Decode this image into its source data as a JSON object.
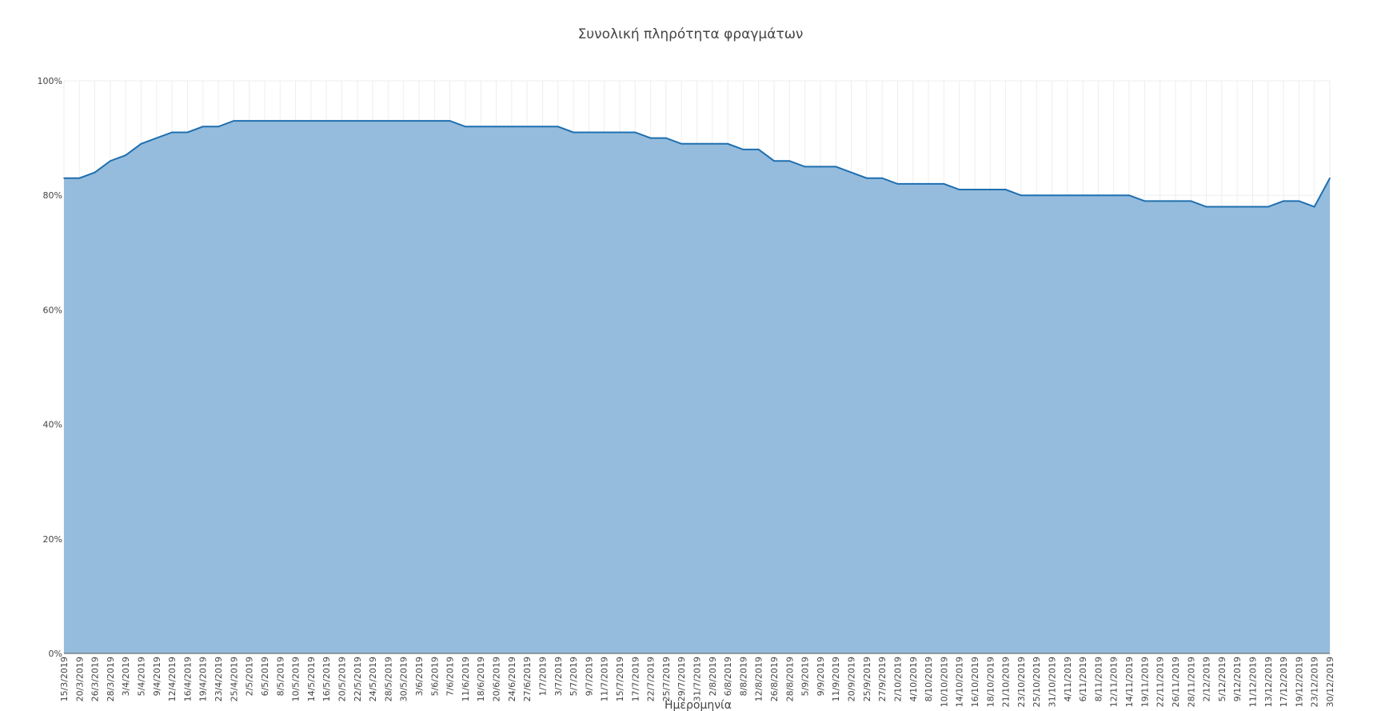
{
  "chart_data": {
    "type": "area",
    "title": "Συνολική πληρότητα φραγμάτων",
    "xlabel": "Ημερομηνία",
    "ylabel": "",
    "ylim": [
      0,
      100
    ],
    "yticks": [
      "0%",
      "20%",
      "40%",
      "60%",
      "80%",
      "100%"
    ],
    "ytick_values": [
      0,
      20,
      40,
      60,
      80,
      100
    ],
    "grid": true,
    "colors": {
      "fill": "#8fb8da",
      "line": "#1f6fb0",
      "grid": "#eeeeee"
    },
    "x": [
      "15/3/2019",
      "20/3/2019",
      "26/3/2019",
      "28/3/2019",
      "3/4/2019",
      "5/4/2019",
      "9/4/2019",
      "12/4/2019",
      "16/4/2019",
      "19/4/2019",
      "23/4/2019",
      "25/4/2019",
      "2/5/2019",
      "6/5/2019",
      "8/5/2019",
      "10/5/2019",
      "14/5/2019",
      "16/5/2019",
      "20/5/2019",
      "22/5/2019",
      "24/5/2019",
      "28/5/2019",
      "30/5/2019",
      "3/6/2019",
      "5/6/2019",
      "7/6/2019",
      "11/6/2019",
      "18/6/2019",
      "20/6/2019",
      "24/6/2019",
      "27/6/2019",
      "1/7/2019",
      "3/7/2019",
      "5/7/2019",
      "9/7/2019",
      "11/7/2019",
      "15/7/2019",
      "17/7/2019",
      "22/7/2019",
      "25/7/2019",
      "29/7/2019",
      "31/7/2019",
      "2/8/2019",
      "6/8/2019",
      "8/8/2019",
      "12/8/2019",
      "26/8/2019",
      "28/8/2019",
      "5/9/2019",
      "9/9/2019",
      "11/9/2019",
      "20/9/2019",
      "25/9/2019",
      "27/9/2019",
      "2/10/2019",
      "4/10/2019",
      "8/10/2019",
      "10/10/2019",
      "14/10/2019",
      "16/10/2019",
      "18/10/2019",
      "21/10/2019",
      "23/10/2019",
      "25/10/2019",
      "31/10/2019",
      "4/11/2019",
      "6/11/2019",
      "8/11/2019",
      "12/11/2019",
      "14/11/2019",
      "19/11/2019",
      "22/11/2019",
      "26/11/2019",
      "28/11/2019",
      "2/12/2019",
      "5/12/2019",
      "9/12/2019",
      "11/12/2019",
      "13/12/2019",
      "17/12/2019",
      "19/12/2019",
      "23/12/2019",
      "30/12/2019"
    ],
    "series": [
      {
        "values": [
          83,
          83,
          84,
          86,
          87,
          89,
          90,
          91,
          91,
          92,
          92,
          93,
          93,
          93,
          93,
          93,
          93,
          93,
          93,
          93,
          93,
          93,
          93,
          93,
          93,
          93,
          92,
          92,
          92,
          92,
          92,
          92,
          92,
          91,
          91,
          91,
          91,
          91,
          90,
          90,
          89,
          89,
          89,
          89,
          88,
          88,
          86,
          86,
          85,
          85,
          85,
          84,
          83,
          83,
          82,
          82,
          82,
          82,
          81,
          81,
          81,
          81,
          80,
          80,
          80,
          80,
          80,
          80,
          80,
          80,
          79,
          79,
          79,
          79,
          78,
          78,
          78,
          78,
          78,
          79,
          79,
          78,
          83
        ]
      }
    ]
  }
}
